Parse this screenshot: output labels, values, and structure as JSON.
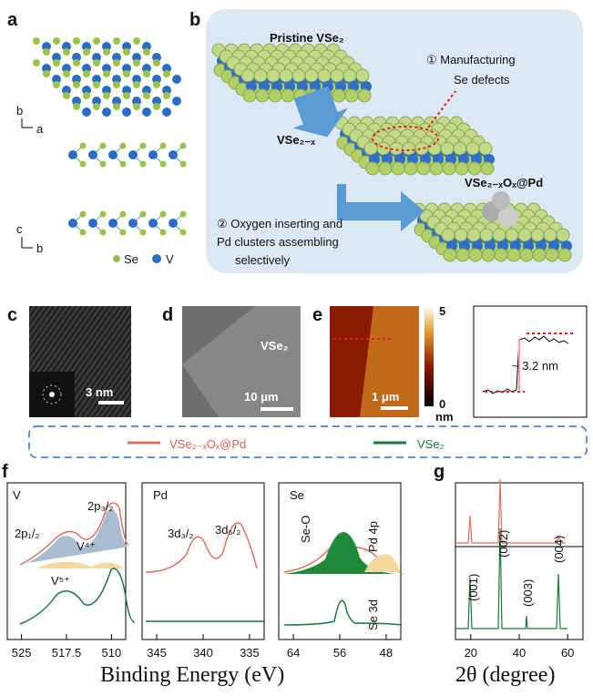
{
  "panels": {
    "a": {
      "letter": "a",
      "axes_top": [
        "b",
        "a"
      ],
      "axes_bottom": [
        "c",
        "b"
      ],
      "legend": [
        "Se",
        "V"
      ]
    },
    "b": {
      "letter": "b",
      "pristine": "Pristine VSe₂",
      "step1": [
        "① Manufacturing",
        "Se defects"
      ],
      "defect": "VSe₂₋ₓ",
      "product": "VSe₂₋ₓOₓ@Pd",
      "step2": [
        "② Oxygen inserting and",
        "Pd clusters assembling",
        "selectively"
      ]
    },
    "c": {
      "letter": "c",
      "scale": "3 nm"
    },
    "d": {
      "letter": "d",
      "label": "VSe₂",
      "scale": "10 μm"
    },
    "e": {
      "letter": "e",
      "scale": "1 μm",
      "colorbar": [
        "5",
        "0",
        "nm"
      ],
      "height": "~ 3.2 nm"
    },
    "legend": [
      "VSe₂₋ₓOₓ@Pd",
      "VSe₂"
    ],
    "f": {
      "letter": "f",
      "V": {
        "title": "V",
        "ticks": [
          525,
          517.5,
          510
        ],
        "labels": [
          "2p₁/₂",
          "2p₃/₂",
          "V⁴⁺",
          "V⁵⁺"
        ]
      },
      "Pd": {
        "title": "Pd",
        "ticks": [
          345,
          340,
          335
        ],
        "labels": [
          "3d₃/₂",
          "3d₅/₂"
        ]
      },
      "Se": {
        "title": "Se",
        "ticks": [
          64,
          56,
          48
        ],
        "labels": [
          "Se-O",
          "Pd 4p",
          "Se 3d"
        ]
      },
      "xlabel": "Binding Energy (eV)"
    },
    "g": {
      "letter": "g",
      "ticks": [
        20,
        40,
        60
      ],
      "peaks": [
        "(001)",
        "(002)",
        "(003)",
        "(004)"
      ],
      "xlabel": "2θ (degree)"
    }
  }
}
